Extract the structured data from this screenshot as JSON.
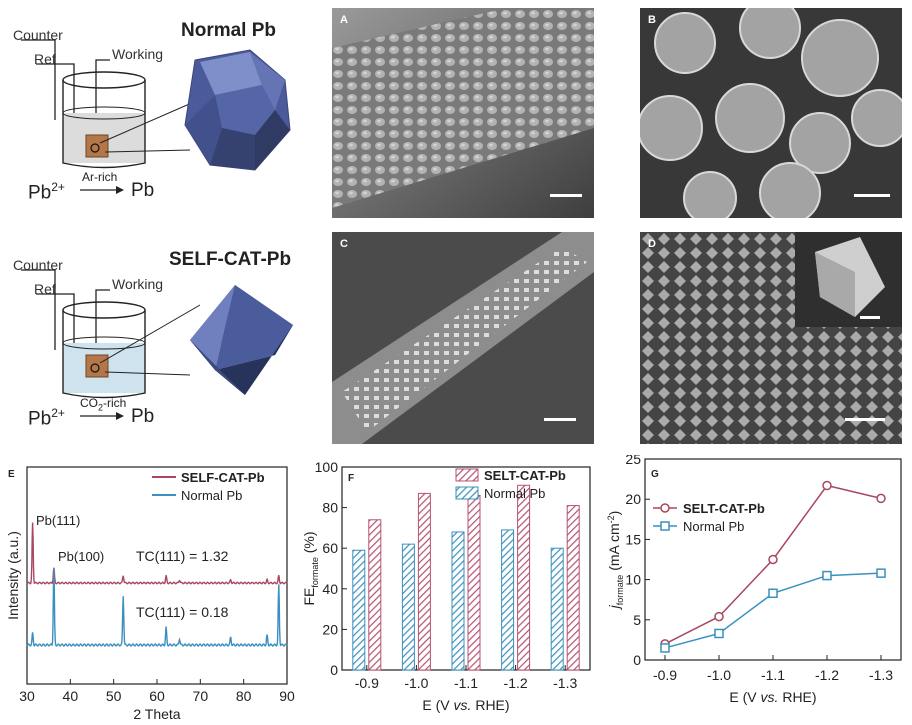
{
  "schematic_top": {
    "title": "Normal Pb",
    "counter_label": "Counter",
    "ref_label": "Ref",
    "working_label": "Working",
    "reaction_left": "Pb",
    "reaction_sup": "2+",
    "reaction_condition": "Ar-rich",
    "reaction_right": "Pb",
    "electrolyte_color": "#dcdcdc",
    "crystal_color": "#5a6aa8"
  },
  "schematic_bottom": {
    "title": "SELF-CAT-Pb",
    "counter_label": "Counter",
    "ref_label": "Ref",
    "working_label": "Working",
    "reaction_left": "Pb",
    "reaction_sup": "2+",
    "reaction_condition_pre": "CO",
    "reaction_condition_sub": "2",
    "reaction_condition_post": "-rich",
    "reaction_right": "Pb",
    "electrolyte_color": "#cfe3ef",
    "crystal_color": "#4b5fa6"
  },
  "sem_panels": {
    "A": "A",
    "B": "B",
    "C": "C",
    "D": "D"
  },
  "chart_data": [
    {
      "panel": "E",
      "type": "line",
      "xlabel": "2 Theta",
      "ylabel": "Intensity (a.u.)",
      "xlim": [
        30,
        90
      ],
      "xticks": [
        30,
        40,
        50,
        60,
        70,
        80,
        90
      ],
      "legend_position": "top-right",
      "series": [
        {
          "name": "SELF-CAT-Pb",
          "color": "#a8475f",
          "peaks": [
            [
              31.3,
              1.0
            ],
            [
              36.2,
              0.25
            ],
            [
              52.2,
              0.13
            ],
            [
              62.1,
              0.12
            ],
            [
              65.2,
              0.05
            ],
            [
              77.0,
              0.05
            ],
            [
              85.4,
              0.05
            ],
            [
              88.1,
              0.12
            ]
          ]
        },
        {
          "name": "Normal Pb",
          "color": "#3b8fc0",
          "peaks": [
            [
              31.3,
              0.15
            ],
            [
              36.2,
              0.95
            ],
            [
              52.2,
              0.62
            ],
            [
              62.1,
              0.22
            ],
            [
              65.2,
              0.08
            ],
            [
              77.0,
              0.1
            ],
            [
              85.4,
              0.12
            ],
            [
              88.1,
              0.75
            ]
          ]
        }
      ],
      "annotations": {
        "pb111": "Pb(111)",
        "pb100": "Pb(100)",
        "tc_self": "TC(111) = 1.32",
        "tc_normal": "TC(111) = 0.18"
      }
    },
    {
      "panel": "F",
      "type": "bar",
      "xlabel_pre": "E (V ",
      "xlabel_ital": "vs.",
      "xlabel_post": " RHE)",
      "ylabel_main": "FE",
      "ylabel_sub": "formate",
      "ylabel_unit": " (%)",
      "ylim": [
        0,
        100
      ],
      "yticks": [
        0,
        20,
        40,
        60,
        80,
        100
      ],
      "categories": [
        "-0.9",
        "-1.0",
        "-1.1",
        "-1.2",
        "-1.3"
      ],
      "legend_position": "top-right",
      "series": [
        {
          "name": "SELT-CAT-Pb",
          "color": "#b5526f",
          "values": [
            74,
            87,
            86,
            91,
            81
          ]
        },
        {
          "name": "Normal Pb",
          "color": "#3a91be",
          "values": [
            59,
            62,
            68,
            69,
            60
          ]
        }
      ]
    },
    {
      "panel": "G",
      "type": "line",
      "xlabel_pre": "E (V ",
      "xlabel_ital": "vs.",
      "xlabel_post": " RHE)",
      "ylabel_main": "j",
      "ylabel_sub": "formate",
      "ylabel_unit": " (mA cm",
      "ylabel_sup": "-2",
      "ylabel_close": ")",
      "ylim": [
        0,
        25
      ],
      "yticks": [
        0,
        5,
        10,
        15,
        20,
        25
      ],
      "categories": [
        "-0.9",
        "-1.0",
        "-1.1",
        "-1.2",
        "-1.3"
      ],
      "legend_position": "top-left",
      "series": [
        {
          "name": "SELT-CAT-Pb",
          "color": "#a8475f",
          "marker": "circle",
          "values": [
            2.0,
            5.4,
            12.5,
            21.7,
            20.1
          ]
        },
        {
          "name": "Normal Pb",
          "color": "#3a91be",
          "marker": "square",
          "values": [
            1.5,
            3.3,
            8.3,
            10.5,
            10.8
          ]
        }
      ]
    }
  ]
}
